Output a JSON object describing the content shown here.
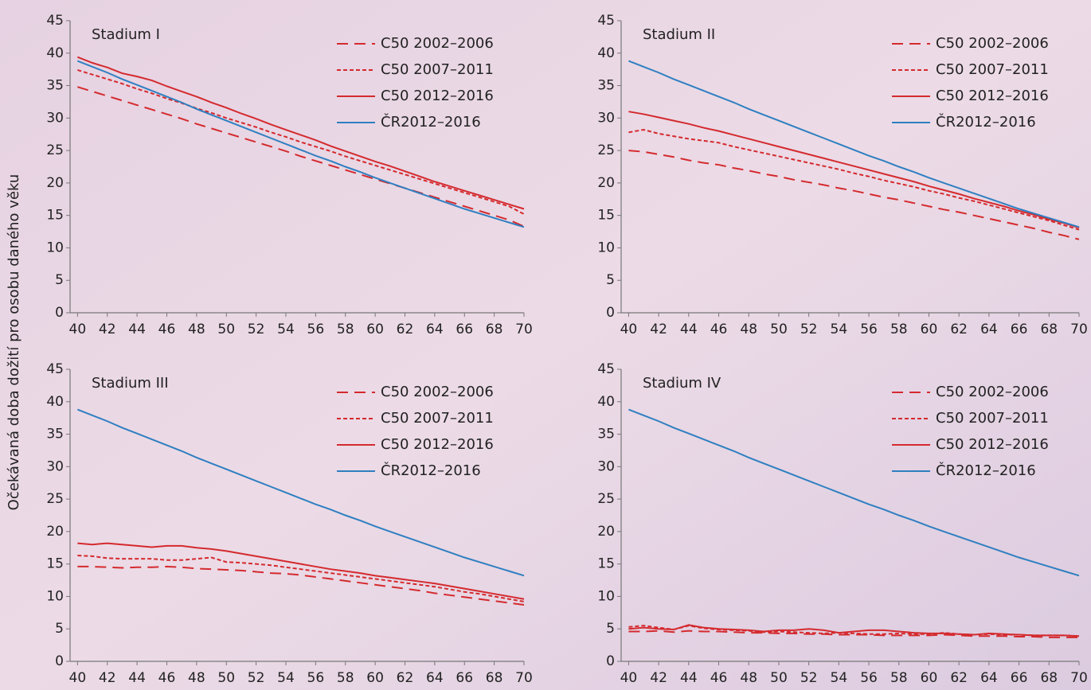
{
  "y_axis_label": "Očekávaná doba dožití pro osobu daného věku",
  "chart_data": [
    {
      "type": "line",
      "title": "Stadium I",
      "legend": "upper right",
      "xlim": [
        39.5,
        70
      ],
      "ylim": [
        0,
        45
      ],
      "xticks": [
        40,
        42,
        44,
        46,
        48,
        50,
        52,
        54,
        56,
        58,
        60,
        62,
        64,
        66,
        68,
        70
      ],
      "yticks": [
        0,
        5,
        10,
        15,
        20,
        25,
        30,
        35,
        40,
        45
      ],
      "x": [
        40,
        41,
        42,
        43,
        44,
        45,
        46,
        47,
        48,
        49,
        50,
        51,
        52,
        53,
        54,
        55,
        56,
        57,
        58,
        59,
        60,
        61,
        62,
        63,
        64,
        65,
        66,
        67,
        68,
        69,
        70
      ],
      "series": [
        {
          "name": "C50 2002–2006",
          "color": "#d42a2e",
          "line_style": "dashed",
          "values": [
            34.8,
            34.1,
            33.4,
            32.7,
            32.0,
            31.3,
            30.6,
            29.9,
            29.1,
            28.4,
            27.7,
            27.0,
            26.3,
            25.6,
            24.9,
            24.1,
            23.4,
            22.7,
            22.0,
            21.3,
            20.6,
            19.9,
            19.2,
            18.5,
            17.8,
            17.1,
            16.4,
            15.7,
            15.0,
            14.3,
            13.3
          ]
        },
        {
          "name": "C50 2007–2011",
          "color": "#d42a2e",
          "line_style": "dotted",
          "values": [
            37.4,
            36.7,
            36.0,
            35.3,
            34.5,
            33.8,
            33.0,
            32.3,
            31.5,
            30.8,
            30.0,
            29.3,
            28.6,
            27.8,
            27.1,
            26.3,
            25.6,
            24.9,
            24.1,
            23.4,
            22.7,
            22.0,
            21.3,
            20.6,
            19.9,
            19.2,
            18.5,
            17.8,
            17.1,
            16.4,
            15.2
          ]
        },
        {
          "name": "C50 2012–2016",
          "color": "#d42a2e",
          "line_style": "solid",
          "values": [
            39.4,
            38.5,
            37.8,
            36.9,
            36.4,
            35.8,
            34.9,
            34.1,
            33.3,
            32.4,
            31.6,
            30.7,
            29.9,
            29.0,
            28.2,
            27.4,
            26.6,
            25.7,
            24.9,
            24.1,
            23.3,
            22.6,
            21.8,
            21.0,
            20.2,
            19.5,
            18.8,
            18.1,
            17.4,
            16.7,
            16.0
          ]
        },
        {
          "name": "ČR2012–2016",
          "color": "#2f7fc1",
          "line_style": "solid",
          "values": [
            38.8,
            37.9,
            37.0,
            36.0,
            35.1,
            34.2,
            33.3,
            32.4,
            31.4,
            30.5,
            29.6,
            28.7,
            27.8,
            26.9,
            26.0,
            25.1,
            24.2,
            23.4,
            22.5,
            21.7,
            20.8,
            20.0,
            19.2,
            18.4,
            17.6,
            16.8,
            16.0,
            15.3,
            14.6,
            13.9,
            13.2
          ]
        }
      ]
    },
    {
      "type": "line",
      "title": "Stadium II",
      "legend": "upper right",
      "xlim": [
        39.5,
        70
      ],
      "ylim": [
        0,
        45
      ],
      "xticks": [
        40,
        42,
        44,
        46,
        48,
        50,
        52,
        54,
        56,
        58,
        60,
        62,
        64,
        66,
        68,
        70
      ],
      "yticks": [
        0,
        5,
        10,
        15,
        20,
        25,
        30,
        35,
        40,
        45
      ],
      "x": [
        40,
        41,
        42,
        43,
        44,
        45,
        46,
        47,
        48,
        49,
        50,
        51,
        52,
        53,
        54,
        55,
        56,
        57,
        58,
        59,
        60,
        61,
        62,
        63,
        64,
        65,
        66,
        67,
        68,
        69,
        70
      ],
      "series": [
        {
          "name": "C50 2002–2006",
          "color": "#d42a2e",
          "line_style": "dashed",
          "values": [
            25.0,
            24.8,
            24.4,
            24.0,
            23.5,
            23.1,
            22.8,
            22.3,
            21.9,
            21.4,
            21.0,
            20.5,
            20.1,
            19.7,
            19.2,
            18.8,
            18.3,
            17.8,
            17.4,
            16.9,
            16.4,
            15.9,
            15.5,
            15.0,
            14.5,
            14.0,
            13.5,
            13.0,
            12.4,
            11.9,
            11.3
          ]
        },
        {
          "name": "C50 2007–2011",
          "color": "#d42a2e",
          "line_style": "dotted",
          "values": [
            27.8,
            28.2,
            27.6,
            27.2,
            26.8,
            26.5,
            26.2,
            25.6,
            25.1,
            24.6,
            24.1,
            23.6,
            23.1,
            22.6,
            22.1,
            21.5,
            21.0,
            20.4,
            19.9,
            19.4,
            18.8,
            18.3,
            17.7,
            17.2,
            16.6,
            16.0,
            15.4,
            14.8,
            14.2,
            13.5,
            12.8
          ]
        },
        {
          "name": "C50 2012–2016",
          "color": "#d42a2e",
          "line_style": "solid",
          "values": [
            31.0,
            30.6,
            30.1,
            29.6,
            29.1,
            28.5,
            28.0,
            27.4,
            26.8,
            26.2,
            25.6,
            25.0,
            24.4,
            23.8,
            23.2,
            22.6,
            22.0,
            21.4,
            20.8,
            20.2,
            19.5,
            18.9,
            18.3,
            17.6,
            17.0,
            16.4,
            15.7,
            15.1,
            14.4,
            13.8,
            13.1
          ]
        },
        {
          "name": "ČR2012–2016",
          "color": "#2f7fc1",
          "line_style": "solid",
          "values": [
            38.8,
            37.9,
            37.0,
            36.0,
            35.1,
            34.2,
            33.3,
            32.4,
            31.4,
            30.5,
            29.6,
            28.7,
            27.8,
            26.9,
            26.0,
            25.1,
            24.2,
            23.4,
            22.5,
            21.7,
            20.8,
            20.0,
            19.2,
            18.4,
            17.6,
            16.8,
            16.0,
            15.3,
            14.6,
            13.9,
            13.2
          ]
        }
      ]
    },
    {
      "type": "line",
      "title": "Stadium III",
      "legend": "upper right",
      "xlim": [
        39.5,
        70
      ],
      "ylim": [
        0,
        45
      ],
      "xticks": [
        40,
        42,
        44,
        46,
        48,
        50,
        52,
        54,
        56,
        58,
        60,
        62,
        64,
        66,
        68,
        70
      ],
      "yticks": [
        0,
        5,
        10,
        15,
        20,
        25,
        30,
        35,
        40,
        45
      ],
      "x": [
        40,
        41,
        42,
        43,
        44,
        45,
        46,
        47,
        48,
        49,
        50,
        51,
        52,
        53,
        54,
        55,
        56,
        57,
        58,
        59,
        60,
        61,
        62,
        63,
        64,
        65,
        66,
        67,
        68,
        69,
        70
      ],
      "series": [
        {
          "name": "C50 2002–2006",
          "color": "#d42a2e",
          "line_style": "dashed",
          "values": [
            14.6,
            14.6,
            14.5,
            14.4,
            14.5,
            14.5,
            14.6,
            14.5,
            14.3,
            14.2,
            14.1,
            14.0,
            13.8,
            13.6,
            13.5,
            13.3,
            13.0,
            12.7,
            12.4,
            12.1,
            11.8,
            11.5,
            11.2,
            10.9,
            10.5,
            10.2,
            9.9,
            9.6,
            9.3,
            9.0,
            8.7
          ]
        },
        {
          "name": "C50 2007–2011",
          "color": "#d42a2e",
          "line_style": "dotted",
          "values": [
            16.3,
            16.2,
            15.9,
            15.8,
            15.8,
            15.8,
            15.6,
            15.6,
            15.8,
            16.0,
            15.3,
            15.2,
            15.0,
            14.8,
            14.5,
            14.2,
            13.9,
            13.6,
            13.3,
            13.0,
            12.7,
            12.4,
            12.1,
            11.8,
            11.5,
            11.1,
            10.7,
            10.4,
            10.0,
            9.6,
            9.2
          ]
        },
        {
          "name": "C50 2012–2016",
          "color": "#d42a2e",
          "line_style": "solid",
          "values": [
            18.2,
            18.0,
            18.2,
            18.0,
            17.8,
            17.6,
            17.8,
            17.8,
            17.5,
            17.3,
            17.0,
            16.6,
            16.2,
            15.8,
            15.4,
            15.0,
            14.6,
            14.2,
            13.9,
            13.6,
            13.2,
            12.9,
            12.6,
            12.3,
            12.0,
            11.6,
            11.2,
            10.8,
            10.4,
            10.0,
            9.6
          ]
        },
        {
          "name": "ČR2012–2016",
          "color": "#2f7fc1",
          "line_style": "solid",
          "values": [
            38.8,
            37.9,
            37.0,
            36.0,
            35.1,
            34.2,
            33.3,
            32.4,
            31.4,
            30.5,
            29.6,
            28.7,
            27.8,
            26.9,
            26.0,
            25.1,
            24.2,
            23.4,
            22.5,
            21.7,
            20.8,
            20.0,
            19.2,
            18.4,
            17.6,
            16.8,
            16.0,
            15.3,
            14.6,
            13.9,
            13.2
          ]
        }
      ]
    },
    {
      "type": "line",
      "title": "Stadium IV",
      "legend": "upper right",
      "xlim": [
        39.5,
        70
      ],
      "ylim": [
        0,
        45
      ],
      "xticks": [
        40,
        42,
        44,
        46,
        48,
        50,
        52,
        54,
        56,
        58,
        60,
        62,
        64,
        66,
        68,
        70
      ],
      "yticks": [
        0,
        5,
        10,
        15,
        20,
        25,
        30,
        35,
        40,
        45
      ],
      "x": [
        40,
        41,
        42,
        43,
        44,
        45,
        46,
        47,
        48,
        49,
        50,
        51,
        52,
        53,
        54,
        55,
        56,
        57,
        58,
        59,
        60,
        61,
        62,
        63,
        64,
        65,
        66,
        67,
        68,
        69,
        70
      ],
      "series": [
        {
          "name": "C50 2002–2006",
          "color": "#d42a2e",
          "line_style": "dashed",
          "values": [
            4.6,
            4.6,
            4.7,
            4.5,
            4.7,
            4.6,
            4.6,
            4.5,
            4.4,
            4.4,
            4.3,
            4.3,
            4.2,
            4.2,
            4.1,
            4.1,
            4.1,
            4.0,
            4.0,
            4.0,
            4.0,
            4.1,
            4.0,
            3.9,
            3.9,
            3.9,
            3.8,
            3.8,
            3.7,
            3.7,
            3.7
          ]
        },
        {
          "name": "C50 2007–2011",
          "color": "#d42a2e",
          "line_style": "dotted",
          "values": [
            5.3,
            5.5,
            5.2,
            4.9,
            5.5,
            5.1,
            4.9,
            4.8,
            4.7,
            4.5,
            4.6,
            4.5,
            4.4,
            4.3,
            4.4,
            4.3,
            4.2,
            4.2,
            4.3,
            4.2,
            4.2,
            4.4,
            4.2,
            4.1,
            4.2,
            4.1,
            4.1,
            4.0,
            4.0,
            4.0,
            3.9
          ]
        },
        {
          "name": "C50 2012–2016",
          "color": "#d42a2e",
          "line_style": "solid",
          "values": [
            5.0,
            5.2,
            5.0,
            4.9,
            5.6,
            5.2,
            5.0,
            4.9,
            4.8,
            4.6,
            4.8,
            4.8,
            5.0,
            4.8,
            4.4,
            4.6,
            4.8,
            4.8,
            4.6,
            4.4,
            4.3,
            4.3,
            4.2,
            4.1,
            4.3,
            4.2,
            4.1,
            4.0,
            4.0,
            4.0,
            3.9
          ]
        },
        {
          "name": "ČR2012–2016",
          "color": "#2f7fc1",
          "line_style": "solid",
          "values": [
            38.8,
            37.9,
            37.0,
            36.0,
            35.1,
            34.2,
            33.3,
            32.4,
            31.4,
            30.5,
            29.6,
            28.7,
            27.8,
            26.9,
            26.0,
            25.1,
            24.2,
            23.4,
            22.5,
            21.7,
            20.8,
            20.0,
            19.2,
            18.4,
            17.6,
            16.8,
            16.0,
            15.3,
            14.6,
            13.9,
            13.2
          ]
        }
      ]
    }
  ]
}
